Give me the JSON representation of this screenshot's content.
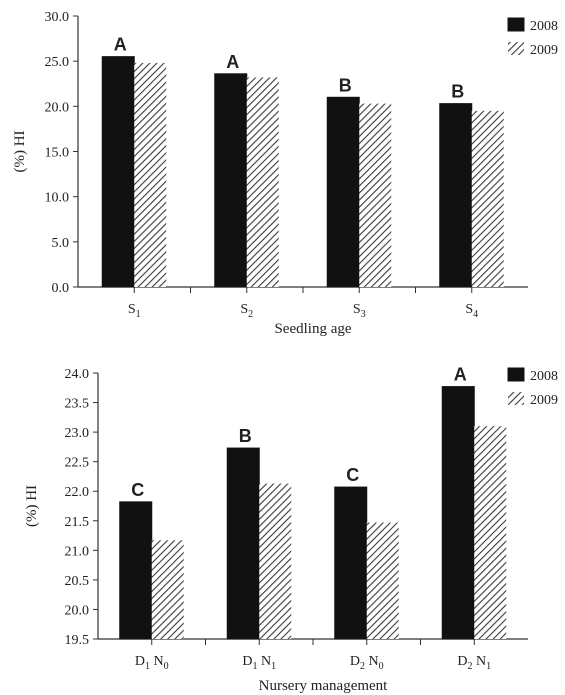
{
  "chart_data": [
    {
      "type": "bar",
      "title": "",
      "xlabel": "Seedling age",
      "ylabel": "(%) HI",
      "ylim": [
        0,
        30
      ],
      "yticks": [
        "0.0",
        "5.0",
        "10.0",
        "15.0",
        "20.0",
        "25.0",
        "30.0"
      ],
      "categories": [
        {
          "main": "S",
          "sub": "1"
        },
        {
          "main": "S",
          "sub": "2"
        },
        {
          "main": "S",
          "sub": "3"
        },
        {
          "main": "S",
          "sub": "4"
        }
      ],
      "series": [
        {
          "name": "2008",
          "values": [
            25.5,
            23.6,
            21.0,
            20.3
          ],
          "color": "#111111",
          "pattern": "solid"
        },
        {
          "name": "2009",
          "values": [
            24.8,
            23.2,
            20.3,
            19.5
          ],
          "color": "#444444",
          "pattern": "hatched"
        }
      ],
      "significance_letters": [
        "A",
        "A",
        "B",
        "B"
      ],
      "legend_position": "top-right",
      "grid": false
    },
    {
      "type": "bar",
      "title": "",
      "xlabel": "Nursery management",
      "ylabel": "(%) HI",
      "ylim": [
        19.5,
        24.0
      ],
      "yticks": [
        "19.5",
        "20.0",
        "20.5",
        "21.0",
        "21.5",
        "22.0",
        "22.5",
        "23.0",
        "23.5",
        "24.0"
      ],
      "categories": [
        {
          "parts": [
            {
              "main": "D",
              "sub": "1"
            },
            {
              "main": " N",
              "sub": "0"
            }
          ]
        },
        {
          "parts": [
            {
              "main": "D",
              "sub": "1"
            },
            {
              "main": " N",
              "sub": "1"
            }
          ]
        },
        {
          "parts": [
            {
              "main": "D",
              "sub": "2"
            },
            {
              "main": " N",
              "sub": "0"
            }
          ]
        },
        {
          "parts": [
            {
              "main": "D",
              "sub": "2"
            },
            {
              "main": " N",
              "sub": "1"
            }
          ]
        }
      ],
      "series": [
        {
          "name": "2008",
          "values": [
            21.82,
            22.73,
            22.07,
            23.77
          ],
          "color": "#111111",
          "pattern": "solid"
        },
        {
          "name": "2009",
          "values": [
            21.17,
            22.13,
            21.47,
            23.1
          ],
          "color": "#444444",
          "pattern": "hatched"
        }
      ],
      "significance_letters": [
        "C",
        "B",
        "C",
        "A"
      ],
      "legend_position": "top-right",
      "grid": false
    }
  ]
}
